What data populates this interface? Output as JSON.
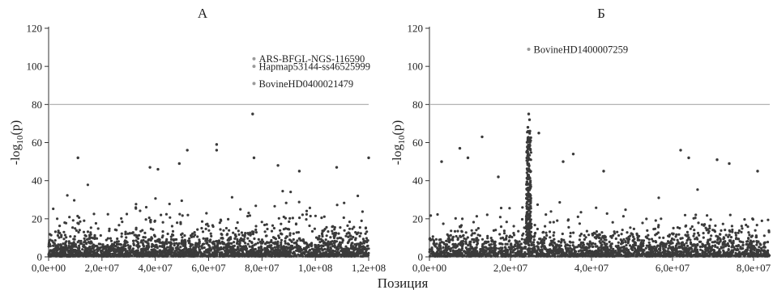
{
  "figure": {
    "shared_xlabel": "Позиция"
  },
  "chart_data": [
    {
      "type": "scatter",
      "title": "А",
      "xlabel": "",
      "ylabel": "-log10(p)",
      "xlim": [
        0,
        120000000
      ],
      "ylim": [
        0,
        120
      ],
      "xticks": [
        0,
        20000000,
        40000000,
        60000000,
        80000000,
        100000000,
        120000000
      ],
      "xtick_labels": [
        "0,0e+00",
        "2,0e+07",
        "4,0e+07",
        "6,0e+07",
        "8,0e+07",
        "1,0e+08",
        "1,2e+08"
      ],
      "yticks": [
        0,
        20,
        40,
        60,
        80,
        100,
        120
      ],
      "ytick_labels": [
        "0",
        "20",
        "40",
        "60",
        "80",
        "100",
        "120"
      ],
      "threshold": 80,
      "grid": false,
      "point_color": "#3a3a3a",
      "threshold_color": "#aaaaaa",
      "annotations": [
        {
          "label": "ARS-BFGL-NGS-116590",
          "x": 77000000,
          "y": 104
        },
        {
          "label": "Hapmap53144-ss46525999",
          "x": 77000000,
          "y": 100
        },
        {
          "label": "BovineHD0400021479",
          "x": 77000000,
          "y": 91
        }
      ],
      "highlights": [
        {
          "x": 52000000,
          "y": 56
        },
        {
          "x": 63000000,
          "y": 59
        },
        {
          "x": 63000000,
          "y": 56
        },
        {
          "x": 76500000,
          "y": 75
        },
        {
          "x": 11000000,
          "y": 52
        },
        {
          "x": 120000000,
          "y": 52
        },
        {
          "x": 77000000,
          "y": 52
        },
        {
          "x": 49000000,
          "y": 49
        },
        {
          "x": 38000000,
          "y": 47
        },
        {
          "x": 41000000,
          "y": 46
        },
        {
          "x": 86000000,
          "y": 48
        },
        {
          "x": 94000000,
          "y": 45
        },
        {
          "x": 108000000,
          "y": 47
        }
      ]
    },
    {
      "type": "scatter",
      "title": "Б",
      "xlabel": "",
      "ylabel": "-log10(p)",
      "xlim": [
        0,
        84000000
      ],
      "ylim": [
        0,
        120
      ],
      "xticks": [
        0,
        20000000,
        40000000,
        60000000,
        80000000
      ],
      "xtick_labels": [
        "0,0e+00",
        "2,0e+07",
        "4,0e+07",
        "6,0e+07",
        "8,0e+07"
      ],
      "yticks": [
        0,
        20,
        40,
        60,
        80,
        100,
        120
      ],
      "ytick_labels": [
        "0",
        "20",
        "40",
        "60",
        "80",
        "100",
        "120"
      ],
      "threshold": 80,
      "grid": false,
      "point_color": "#3a3a3a",
      "threshold_color": "#aaaaaa",
      "annotations": [
        {
          "label": "BovineHD1400007259",
          "x": 24500000,
          "y": 109
        }
      ],
      "highlights": [
        {
          "x": 24500000,
          "y": 75
        },
        {
          "x": 24700000,
          "y": 72
        },
        {
          "x": 24300000,
          "y": 68
        },
        {
          "x": 24800000,
          "y": 66
        },
        {
          "x": 27000000,
          "y": 65
        },
        {
          "x": 13000000,
          "y": 63
        },
        {
          "x": 7500000,
          "y": 57
        },
        {
          "x": 62000000,
          "y": 56
        },
        {
          "x": 35500000,
          "y": 54
        },
        {
          "x": 74000000,
          "y": 49
        },
        {
          "x": 81000000,
          "y": 45
        },
        {
          "x": 43000000,
          "y": 45
        },
        {
          "x": 64000000,
          "y": 52
        },
        {
          "x": 3000000,
          "y": 50
        },
        {
          "x": 9500000,
          "y": 52
        },
        {
          "x": 17000000,
          "y": 42
        },
        {
          "x": 33000000,
          "y": 50
        },
        {
          "x": 71000000,
          "y": 51
        }
      ]
    }
  ]
}
